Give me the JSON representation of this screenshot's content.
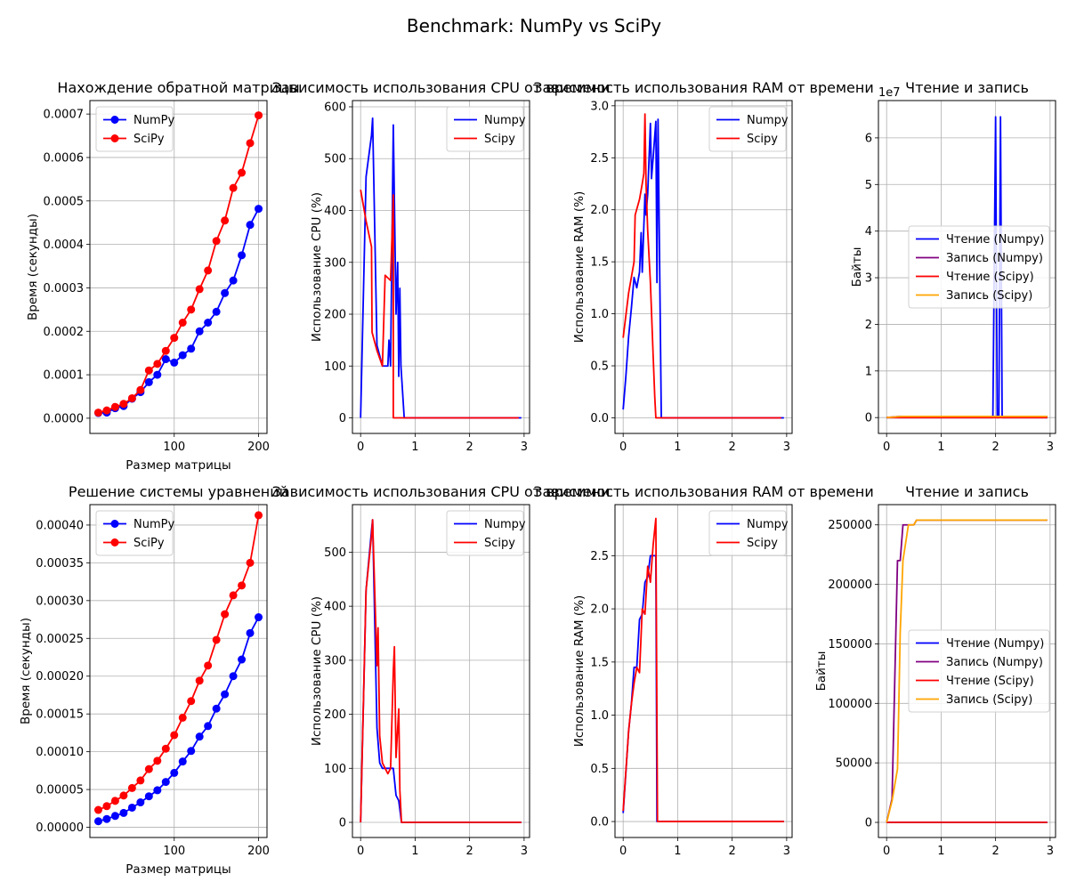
{
  "figure": {
    "suptitle": "Benchmark: NumPy vs SciPy"
  },
  "chart_data": [
    {
      "type": "line",
      "title": "Нахождение обратной матрицы",
      "xlabel": "Размер матрицы",
      "ylabel": "Время (секунды)",
      "xlim": [
        0,
        210
      ],
      "ylim": [
        -3.5e-05,
        0.000731
      ],
      "xticks": [
        100,
        200
      ],
      "yticks": [
        0,
        0.0001,
        0.0002,
        0.0003,
        0.0004,
        0.0005,
        0.0006,
        0.0007
      ],
      "ytick_labels": [
        "0.0000",
        "0.0001",
        "0.0002",
        "0.0003",
        "0.0004",
        "0.0005",
        "0.0006",
        "0.0007"
      ],
      "grid": true,
      "legend_position": "upper-left",
      "series": [
        {
          "name": "NumPy",
          "color": "#0000ff",
          "marker": true,
          "x": [
            10,
            20,
            30,
            40,
            50,
            60,
            70,
            80,
            90,
            100,
            110,
            120,
            130,
            140,
            150,
            160,
            170,
            180,
            190,
            200
          ],
          "y": [
            1.2e-05,
            1.3e-05,
            2.3e-05,
            2.8e-05,
            4.5e-05,
            6e-05,
            8.3e-05,
            0.0001,
            0.000136,
            0.000128,
            0.000145,
            0.00016,
            0.0002,
            0.00022,
            0.000245,
            0.000288,
            0.000317,
            0.000375,
            0.000445,
            0.000482
          ]
        },
        {
          "name": "SciPy",
          "color": "#ff0000",
          "marker": true,
          "x": [
            10,
            20,
            30,
            40,
            50,
            60,
            70,
            80,
            90,
            100,
            110,
            120,
            130,
            140,
            150,
            160,
            170,
            180,
            190,
            200
          ],
          "y": [
            1.3e-05,
            1.8e-05,
            2.6e-05,
            3.3e-05,
            4.6e-05,
            6.5e-05,
            0.00011,
            0.000125,
            0.000155,
            0.000185,
            0.00022,
            0.00025,
            0.000297,
            0.00034,
            0.000408,
            0.000455,
            0.00053,
            0.000565,
            0.000633,
            0.000697
          ]
        }
      ]
    },
    {
      "type": "line",
      "title": "Зависимость использования CPU от времени",
      "xlabel": "",
      "ylabel": "Использование CPU (%)",
      "xlim": [
        -0.15,
        3.1
      ],
      "ylim": [
        -30,
        612
      ],
      "xticks": [
        0,
        1,
        2,
        3
      ],
      "yticks": [
        0,
        100,
        200,
        300,
        400,
        500,
        600
      ],
      "grid": true,
      "legend_position": "upper-right",
      "series": [
        {
          "name": "Numpy",
          "color": "#0000ff",
          "x": [
            0,
            0.1,
            0.2,
            0.22,
            0.3,
            0.4,
            0.45,
            0.5,
            0.52,
            0.55,
            0.6,
            0.65,
            0.68,
            0.7,
            0.72,
            0.74,
            0.8,
            0.9,
            2.9,
            2.95
          ],
          "y": [
            0,
            465,
            545,
            578,
            140,
            100,
            100,
            100,
            150,
            100,
            565,
            200,
            300,
            80,
            250,
            100,
            0,
            0,
            0,
            0
          ]
        },
        {
          "name": "Scipy",
          "color": "#ff0000",
          "x": [
            0,
            0.1,
            0.2,
            0.21,
            0.3,
            0.4,
            0.45,
            0.5,
            0.55,
            0.6,
            0.6,
            0.7,
            0.8,
            2.9
          ],
          "y": [
            440,
            380,
            330,
            165,
            130,
            100,
            275,
            270,
            265,
            430,
            0,
            0,
            0,
            0
          ]
        }
      ]
    },
    {
      "type": "line",
      "title": "Зависимость использования RAM от времени",
      "xlabel": "",
      "ylabel": "Использование RAM (%)",
      "xlim": [
        -0.15,
        3.1
      ],
      "ylim": [
        -0.15,
        3.05
      ],
      "xticks": [
        0,
        1,
        2,
        3
      ],
      "yticks": [
        0,
        0.5,
        1,
        1.5,
        2,
        2.5,
        3
      ],
      "ytick_labels": [
        "0.0",
        "0.5",
        "1.0",
        "1.5",
        "2.0",
        "2.5",
        "3.0"
      ],
      "grid": true,
      "legend_position": "upper-right",
      "series": [
        {
          "name": "Numpy",
          "color": "#0000ff",
          "x": [
            0,
            0.05,
            0.1,
            0.15,
            0.2,
            0.25,
            0.3,
            0.33,
            0.35,
            0.4,
            0.42,
            0.45,
            0.5,
            0.52,
            0.55,
            0.6,
            0.62,
            0.64,
            0.7,
            2.95
          ],
          "y": [
            0.08,
            0.4,
            0.78,
            1.05,
            1.35,
            1.25,
            1.4,
            1.78,
            1.4,
            2.15,
            1.95,
            2.15,
            2.83,
            2.3,
            2.5,
            2.85,
            1.3,
            2.87,
            0,
            0
          ]
        },
        {
          "name": "Scipy",
          "color": "#ff0000",
          "x": [
            0,
            0.1,
            0.2,
            0.22,
            0.3,
            0.35,
            0.38,
            0.4,
            0.42,
            0.45,
            0.5,
            0.55,
            0.58,
            0.6,
            0.7,
            2.9
          ],
          "y": [
            0.77,
            1.2,
            1.5,
            1.95,
            2.1,
            2.25,
            2.35,
            2.92,
            2.25,
            1.8,
            1.3,
            0.6,
            0.2,
            0,
            0,
            0
          ]
        }
      ]
    },
    {
      "type": "line",
      "title": "Чтение и запись",
      "xlabel": "",
      "ylabel": "Байты",
      "scale_label": "1e7",
      "xlim": [
        -0.15,
        3.1
      ],
      "ylim": [
        -3400000,
        68000000
      ],
      "xticks": [
        0,
        1,
        2,
        3
      ],
      "yticks": [
        0,
        10000000,
        20000000,
        30000000,
        40000000,
        50000000,
        60000000
      ],
      "ytick_labels": [
        "0",
        "1",
        "2",
        "3",
        "4",
        "5",
        "6"
      ],
      "grid": true,
      "legend_position": "center-right",
      "series": [
        {
          "name": "Чтение (Numpy)",
          "color": "#0000ff",
          "x": [
            0,
            1.95,
            2.0,
            2.03,
            2.06,
            2.09,
            2.12,
            2.15,
            2.95
          ],
          "y": [
            0,
            0,
            64500000,
            0,
            0,
            64500000,
            0,
            0,
            0
          ]
        },
        {
          "name": "Запись (Numpy)",
          "color": "#800080",
          "x": [
            0,
            0.2,
            0.3,
            2.95
          ],
          "y": [
            0,
            200000,
            250000,
            250000
          ]
        },
        {
          "name": "Чтение (Scipy)",
          "color": "#ff0000",
          "x": [
            0,
            2.95
          ],
          "y": [
            0,
            0
          ]
        },
        {
          "name": "Запись (Scipy)",
          "color": "#ffa500",
          "x": [
            0,
            0.2,
            0.3,
            2.95
          ],
          "y": [
            0,
            180000,
            250000,
            250000
          ]
        }
      ]
    },
    {
      "type": "line",
      "title": "Решение системы уравнений",
      "xlabel": "Размер матрицы",
      "ylabel": "Время (секунды)",
      "xlim": [
        0,
        210
      ],
      "ylim": [
        -1.35e-05,
        0.000427
      ],
      "xticks": [
        100,
        200
      ],
      "yticks": [
        0,
        5e-05,
        0.0001,
        0.00015,
        0.0002,
        0.00025,
        0.0003,
        0.00035,
        0.0004
      ],
      "ytick_labels": [
        "0.00000",
        "0.00005",
        "0.00010",
        "0.00015",
        "0.00020",
        "0.00025",
        "0.00030",
        "0.00035",
        "0.00040"
      ],
      "grid": true,
      "legend_position": "upper-left",
      "series": [
        {
          "name": "NumPy",
          "color": "#0000ff",
          "marker": true,
          "x": [
            10,
            20,
            30,
            40,
            50,
            60,
            70,
            80,
            90,
            100,
            110,
            120,
            130,
            140,
            150,
            160,
            170,
            180,
            190,
            200
          ],
          "y": [
            8e-06,
            1.1e-05,
            1.5e-05,
            1.9e-05,
            2.6e-05,
            3.3e-05,
            4.1e-05,
            4.9e-05,
            6e-05,
            7.2e-05,
            8.7e-05,
            0.000101,
            0.00012,
            0.000134,
            0.000157,
            0.000176,
            0.0002,
            0.000222,
            0.000257,
            0.000278
          ]
        },
        {
          "name": "SciPy",
          "color": "#ff0000",
          "marker": true,
          "x": [
            10,
            20,
            30,
            40,
            50,
            60,
            70,
            80,
            90,
            100,
            110,
            120,
            130,
            140,
            150,
            160,
            170,
            180,
            190,
            200
          ],
          "y": [
            2.3e-05,
            2.8e-05,
            3.5e-05,
            4.2e-05,
            5.2e-05,
            6.2e-05,
            7.7e-05,
            8.8e-05,
            0.000104,
            0.000122,
            0.000145,
            0.000167,
            0.000194,
            0.000214,
            0.000248,
            0.000282,
            0.000307,
            0.00032,
            0.00035,
            0.000413
          ]
        }
      ]
    },
    {
      "type": "line",
      "title": "Зависимость использования CPU от времени",
      "xlabel": "",
      "ylabel": "Использование CPU (%)",
      "xlim": [
        -0.15,
        3.1
      ],
      "ylim": [
        -28,
        588
      ],
      "xticks": [
        0,
        1,
        2,
        3
      ],
      "yticks": [
        0,
        100,
        200,
        300,
        400,
        500
      ],
      "grid": true,
      "legend_position": "upper-right",
      "series": [
        {
          "name": "Numpy",
          "color": "#0000ff",
          "x": [
            0,
            0.1,
            0.2,
            0.22,
            0.3,
            0.35,
            0.4,
            0.5,
            0.55,
            0.6,
            0.65,
            0.7,
            0.75,
            0.8,
            2.95
          ],
          "y": [
            0,
            430,
            540,
            560,
            175,
            110,
            100,
            100,
            100,
            100,
            50,
            40,
            0,
            0,
            0
          ]
        },
        {
          "name": "Scipy",
          "color": "#ff0000",
          "x": [
            0,
            0.1,
            0.2,
            0.22,
            0.3,
            0.32,
            0.35,
            0.4,
            0.45,
            0.5,
            0.55,
            0.6,
            0.62,
            0.65,
            0.7,
            0.72,
            0.75,
            0.8,
            2.95
          ],
          "y": [
            0,
            430,
            530,
            560,
            290,
            360,
            160,
            110,
            100,
            90,
            100,
            280,
            325,
            120,
            210,
            60,
            0,
            0,
            0
          ]
        }
      ]
    },
    {
      "type": "line",
      "title": "Зависимость использования RAM от времени",
      "xlabel": "",
      "ylabel": "Использование RAM (%)",
      "xlim": [
        -0.15,
        3.1
      ],
      "ylim": [
        -0.15,
        2.98
      ],
      "xticks": [
        0,
        1,
        2,
        3
      ],
      "yticks": [
        0,
        0.5,
        1,
        1.5,
        2,
        2.5
      ],
      "ytick_labels": [
        "0.0",
        "0.5",
        "1.0",
        "1.5",
        "2.0",
        "2.5"
      ],
      "grid": true,
      "legend_position": "upper-right",
      "series": [
        {
          "name": "Numpy",
          "color": "#0000ff",
          "x": [
            0,
            0.1,
            0.15,
            0.2,
            0.25,
            0.3,
            0.35,
            0.4,
            0.45,
            0.5,
            0.55,
            0.6,
            0.62,
            0.65,
            0.7,
            2.95
          ],
          "y": [
            0.08,
            0.85,
            1.1,
            1.45,
            1.45,
            1.9,
            1.95,
            2.25,
            2.3,
            2.5,
            2.5,
            2.5,
            0,
            0,
            0,
            0
          ]
        },
        {
          "name": "Scipy",
          "color": "#ff0000",
          "x": [
            0,
            0.1,
            0.15,
            0.2,
            0.25,
            0.3,
            0.35,
            0.4,
            0.45,
            0.5,
            0.55,
            0.6,
            0.63,
            0.65,
            0.7,
            2.95
          ],
          "y": [
            0.1,
            0.85,
            1.1,
            1.3,
            1.45,
            1.4,
            2.0,
            1.95,
            2.4,
            2.25,
            2.6,
            2.85,
            0,
            0,
            0,
            0
          ]
        }
      ]
    },
    {
      "type": "line",
      "title": "Чтение и запись",
      "xlabel": "",
      "ylabel": "Байты",
      "xlim": [
        -0.15,
        3.1
      ],
      "ylim": [
        -12700,
        267000
      ],
      "xticks": [
        0,
        1,
        2,
        3
      ],
      "yticks": [
        0,
        50000,
        100000,
        150000,
        200000,
        250000
      ],
      "ytick_labels": [
        "0",
        "50000",
        "100000",
        "150000",
        "200000",
        "250000"
      ],
      "grid": true,
      "legend_position": "center-right",
      "series": [
        {
          "name": "Чтение (Numpy)",
          "color": "#0000ff",
          "x": [
            0,
            2.95
          ],
          "y": [
            0,
            0
          ]
        },
        {
          "name": "Запись (Numpy)",
          "color": "#800080",
          "x": [
            0,
            0.1,
            0.2,
            0.25,
            0.3,
            0.35,
            0.4,
            0.5,
            0.55,
            0.6,
            2.95
          ],
          "y": [
            0,
            20000,
            220000,
            220000,
            250000,
            250000,
            250000,
            250000,
            254000,
            254000,
            254000
          ]
        },
        {
          "name": "Чтение (Scipy)",
          "color": "#ff0000",
          "x": [
            0,
            2.95
          ],
          "y": [
            0,
            0
          ]
        },
        {
          "name": "Запись (Scipy)",
          "color": "#ffa500",
          "x": [
            0,
            0.1,
            0.2,
            0.22,
            0.25,
            0.3,
            0.4,
            0.5,
            0.55,
            0.6,
            2.95
          ],
          "y": [
            0,
            18000,
            45000,
            90000,
            160000,
            220000,
            250000,
            250000,
            254000,
            254000,
            254000
          ]
        }
      ]
    }
  ]
}
